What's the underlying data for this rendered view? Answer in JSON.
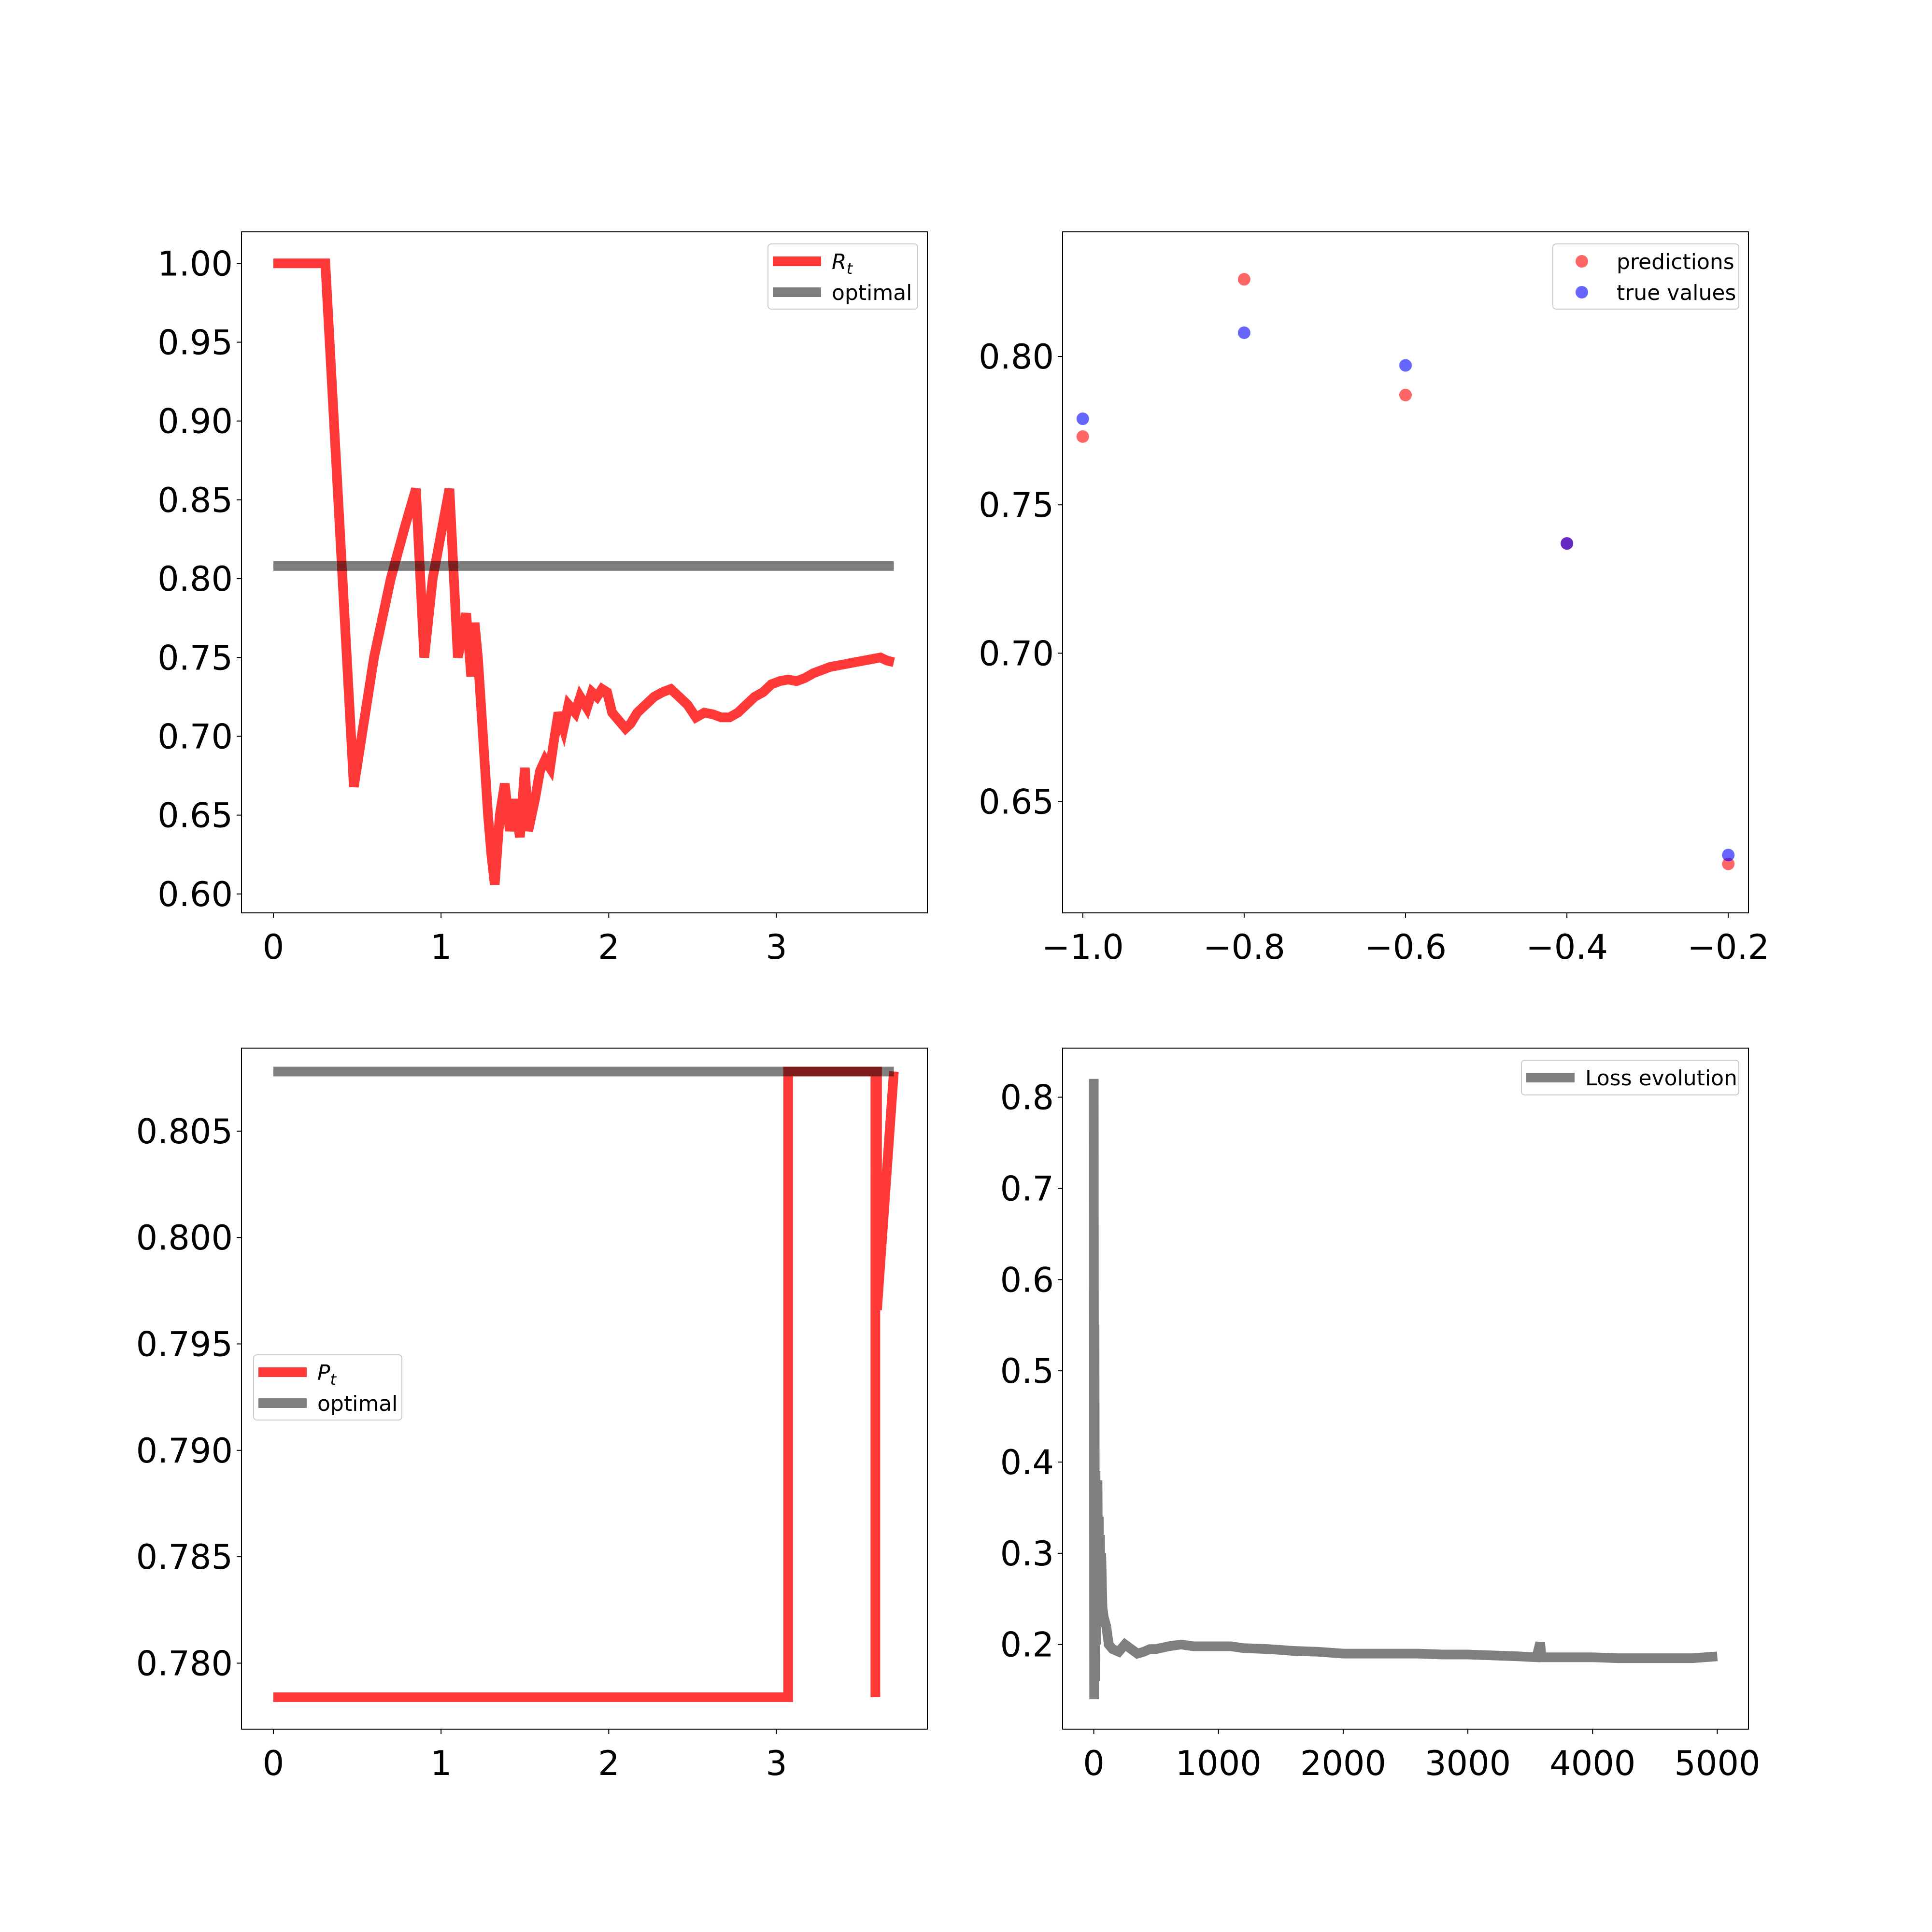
{
  "chart_data": [
    {
      "id": "rt",
      "type": "line",
      "title": "",
      "xlabel": "",
      "ylabel": "",
      "xlim": [
        -0.19,
        3.9
      ],
      "ylim": [
        0.588,
        1.02
      ],
      "xticks": [
        0,
        1,
        2,
        3
      ],
      "xtick_labels": [
        "0",
        "1",
        "2",
        "3"
      ],
      "yticks": [
        0.6,
        0.65,
        0.7,
        0.75,
        0.8,
        0.85,
        0.9,
        0.95,
        1.0
      ],
      "ytick_labels": [
        "0.60",
        "0.65",
        "0.70",
        "0.75",
        "0.80",
        "0.85",
        "0.90",
        "0.95",
        "1.00"
      ],
      "legend": {
        "position": "top-right",
        "items": [
          {
            "label": "R",
            "subscript": "t",
            "color": "#ff0000"
          },
          {
            "label": "optimal",
            "color": "#000000"
          }
        ]
      },
      "series": [
        {
          "name": "R_t",
          "color": "#ff0000",
          "opacity": 0.78,
          "linewidth": 20,
          "x": [
            0,
            0.3,
            0.31,
            0.48,
            0.6,
            0.7,
            0.79,
            0.85,
            0.9,
            0.95,
            1.05,
            1.1,
            1.15,
            1.18,
            1.2,
            1.22,
            1.25,
            1.28,
            1.3,
            1.32,
            1.35,
            1.38,
            1.41,
            1.44,
            1.47,
            1.5,
            1.52,
            1.56,
            1.59,
            1.62,
            1.65,
            1.67,
            1.7,
            1.73,
            1.76,
            1.8,
            1.83,
            1.87,
            1.9,
            1.93,
            1.96,
            1.99,
            2.02,
            2.06,
            2.1,
            2.13,
            2.17,
            2.22,
            2.27,
            2.32,
            2.37,
            2.42,
            2.47,
            2.52,
            2.57,
            2.62,
            2.67,
            2.72,
            2.77,
            2.82,
            2.87,
            2.92,
            2.97,
            3.02,
            3.07,
            3.12,
            3.17,
            3.22,
            3.27,
            3.32,
            3.37,
            3.42,
            3.47,
            3.52,
            3.57,
            3.62,
            3.66,
            3.7
          ],
          "y": [
            1.0,
            1.0,
            1.0,
            0.668,
            0.75,
            0.8,
            0.835,
            0.857,
            0.75,
            0.8,
            0.857,
            0.75,
            0.778,
            0.738,
            0.772,
            0.75,
            0.7,
            0.65,
            0.625,
            0.606,
            0.65,
            0.67,
            0.64,
            0.66,
            0.636,
            0.68,
            0.64,
            0.66,
            0.678,
            0.685,
            0.68,
            0.695,
            0.715,
            0.705,
            0.72,
            0.715,
            0.725,
            0.718,
            0.728,
            0.725,
            0.73,
            0.728,
            0.715,
            0.71,
            0.705,
            0.708,
            0.715,
            0.72,
            0.725,
            0.728,
            0.73,
            0.725,
            0.72,
            0.712,
            0.715,
            0.714,
            0.712,
            0.712,
            0.715,
            0.72,
            0.725,
            0.728,
            0.733,
            0.735,
            0.736,
            0.735,
            0.737,
            0.74,
            0.742,
            0.744,
            0.745,
            0.746,
            0.747,
            0.748,
            0.749,
            0.75,
            0.748,
            0.747
          ]
        },
        {
          "name": "optimal",
          "color": "#000000",
          "opacity": 0.5,
          "linewidth": 20,
          "x": [
            0,
            3.7
          ],
          "y": [
            0.808,
            0.808
          ]
        }
      ]
    },
    {
      "id": "pred",
      "type": "scatter",
      "title": "",
      "xlabel": "",
      "ylabel": "",
      "xlim": [
        -1.025,
        -0.175
      ],
      "ylim": [
        0.6125,
        0.842
      ],
      "xticks": [
        -1.0,
        -0.8,
        -0.6,
        -0.4,
        -0.2
      ],
      "xtick_labels": [
        "−1.0",
        "−0.8",
        "−0.6",
        "−0.4",
        "−0.2"
      ],
      "yticks": [
        0.65,
        0.7,
        0.75,
        0.8
      ],
      "ytick_labels": [
        "0.65",
        "0.70",
        "0.75",
        "0.80"
      ],
      "legend": {
        "position": "top-right",
        "items": [
          {
            "label": "predictions",
            "color": "#ff0000"
          },
          {
            "label": "true values",
            "color": "#0000ff"
          }
        ]
      },
      "series": [
        {
          "name": "predictions",
          "color": "#ff0000",
          "opacity": 0.6,
          "x": [
            -1.0,
            -0.8,
            -0.6,
            -0.4,
            -0.2
          ],
          "y": [
            0.773,
            0.826,
            0.787,
            0.737,
            0.629
          ]
        },
        {
          "name": "true values",
          "color": "#0000ff",
          "opacity": 0.6,
          "x": [
            -1.0,
            -0.8,
            -0.6,
            -0.4,
            -0.2
          ],
          "y": [
            0.779,
            0.808,
            0.797,
            0.737,
            0.632
          ]
        }
      ]
    },
    {
      "id": "pt",
      "type": "line",
      "title": "",
      "xlabel": "",
      "ylabel": "",
      "xlim": [
        -0.19,
        3.9
      ],
      "ylim": [
        0.7769,
        0.8089
      ],
      "xticks": [
        0,
        1,
        2,
        3
      ],
      "xtick_labels": [
        "0",
        "1",
        "2",
        "3"
      ],
      "yticks": [
        0.78,
        0.785,
        0.79,
        0.795,
        0.8,
        0.805
      ],
      "ytick_labels": [
        "0.780",
        "0.785",
        "0.790",
        "0.795",
        "0.800",
        "0.805"
      ],
      "legend": {
        "position": "center-left",
        "items": [
          {
            "label": "P",
            "subscript": "t",
            "color": "#ff0000"
          },
          {
            "label": "optimal",
            "color": "#000000"
          }
        ]
      },
      "series": [
        {
          "name": "P_t",
          "color": "#ff0000",
          "opacity": 0.78,
          "linewidth": 20,
          "x": [
            0,
            3.07,
            3.07,
            3.59,
            3.59,
            3.59,
            3.6,
            3.6,
            3.7
          ],
          "y": [
            0.7784,
            0.7784,
            0.8078,
            0.8078,
            0.7784,
            0.8078,
            0.8078,
            0.7966,
            0.8078
          ]
        },
        {
          "name": "optimal",
          "color": "#000000",
          "opacity": 0.5,
          "linewidth": 20,
          "x": [
            0,
            3.7
          ],
          "y": [
            0.8078,
            0.8078
          ]
        }
      ]
    },
    {
      "id": "loss",
      "type": "line",
      "title": "",
      "xlabel": "",
      "ylabel": "",
      "xlim": [
        -250,
        5250
      ],
      "ylim": [
        0.1072,
        0.8538
      ],
      "xticks": [
        0,
        1000,
        2000,
        3000,
        4000,
        5000
      ],
      "xtick_labels": [
        "0",
        "1000",
        "2000",
        "3000",
        "4000",
        "5000"
      ],
      "yticks": [
        0.2,
        0.3,
        0.4,
        0.5,
        0.6,
        0.7,
        0.8
      ],
      "ytick_labels": [
        "0.2",
        "0.3",
        "0.4",
        "0.5",
        "0.6",
        "0.7",
        "0.8"
      ],
      "legend": {
        "position": "top-right",
        "items": [
          {
            "label": "Loss evolution",
            "color": "#000000"
          }
        ]
      },
      "series": [
        {
          "name": "Loss evolution",
          "color": "#000000",
          "opacity": 0.5,
          "linewidth": 20,
          "x": [
            0,
            3,
            6,
            10,
            14,
            18,
            22,
            26,
            30,
            35,
            40,
            45,
            50,
            55,
            60,
            70,
            80,
            100,
            120,
            150,
            200,
            250,
            300,
            350,
            400,
            450,
            500,
            600,
            700,
            800,
            900,
            1000,
            1100,
            1200,
            1400,
            1600,
            1800,
            2000,
            2200,
            2400,
            2600,
            2800,
            3000,
            3200,
            3400,
            3550,
            3580,
            3590,
            3610,
            3700,
            3800,
            4000,
            4200,
            4400,
            4600,
            4800,
            5000
          ],
          "y": [
            0.82,
            0.14,
            0.55,
            0.16,
            0.39,
            0.2,
            0.3,
            0.22,
            0.38,
            0.25,
            0.34,
            0.22,
            0.32,
            0.24,
            0.3,
            0.24,
            0.23,
            0.22,
            0.2,
            0.195,
            0.192,
            0.2,
            0.195,
            0.19,
            0.192,
            0.195,
            0.195,
            0.198,
            0.2,
            0.198,
            0.198,
            0.198,
            0.198,
            0.196,
            0.195,
            0.193,
            0.192,
            0.19,
            0.19,
            0.19,
            0.19,
            0.189,
            0.189,
            0.188,
            0.187,
            0.186,
            0.202,
            0.186,
            0.186,
            0.186,
            0.186,
            0.186,
            0.185,
            0.185,
            0.185,
            0.185,
            0.187
          ]
        }
      ]
    }
  ]
}
